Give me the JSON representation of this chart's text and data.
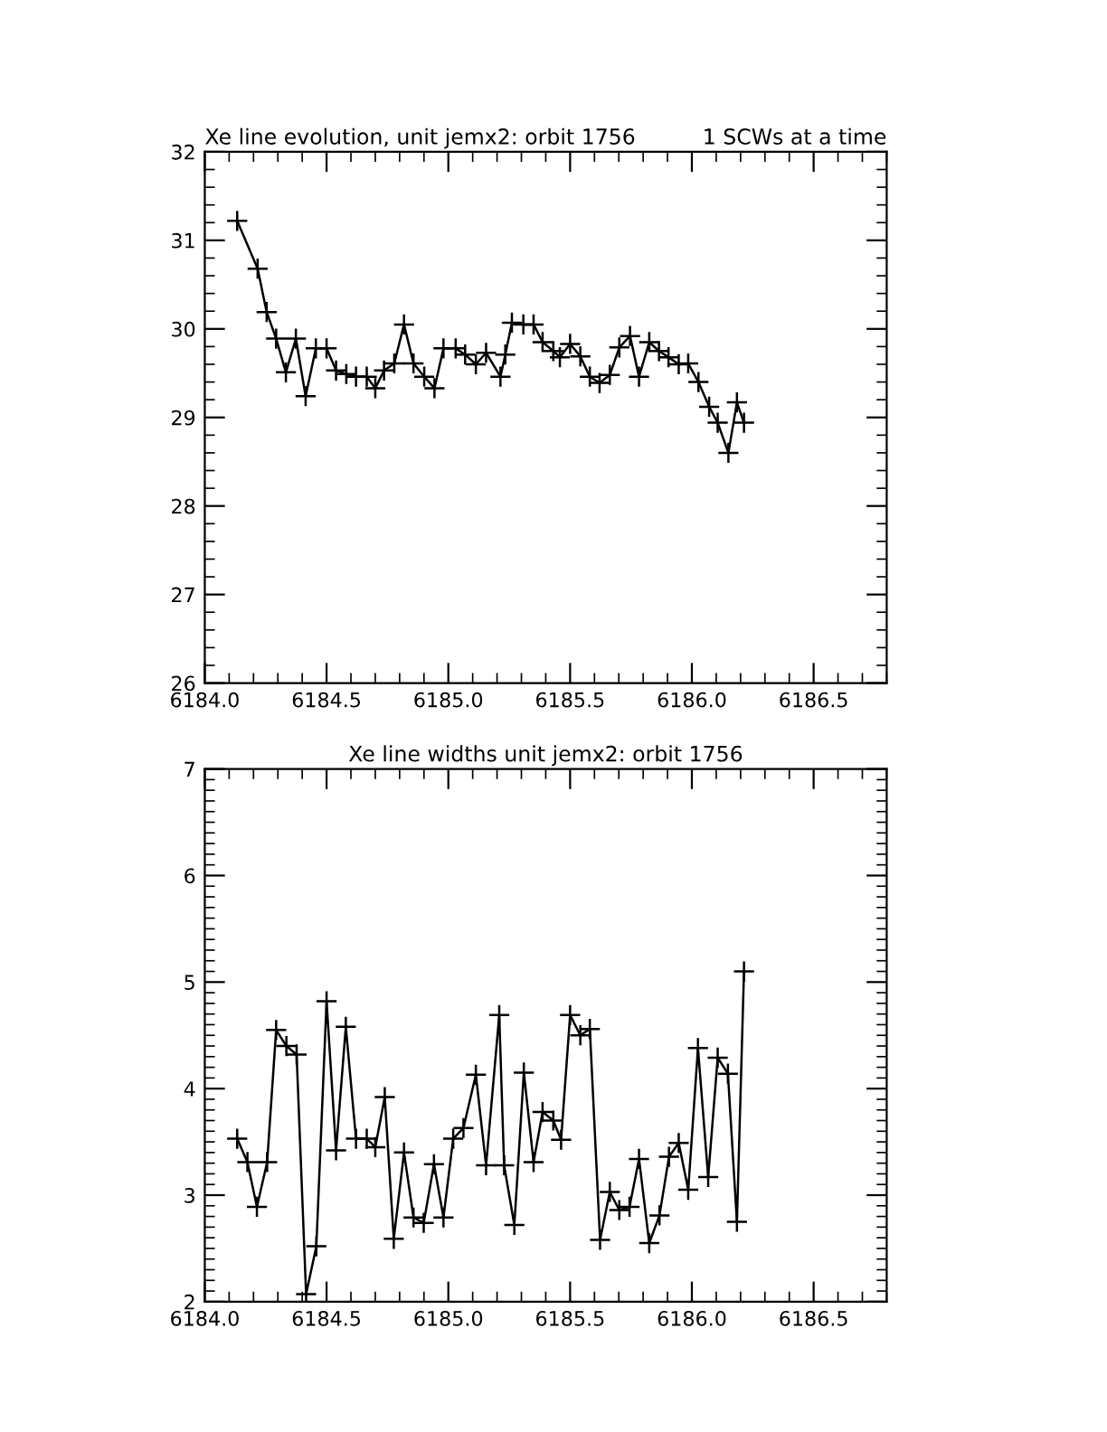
{
  "chart_data": [
    {
      "type": "line",
      "title": "Xe line evolution, unit jemx2: orbit 1756",
      "annotations": [
        "1 SCWs at a time"
      ],
      "marker": "cross",
      "line_style": "solid",
      "grid": false,
      "legend": false,
      "xlim": [
        6184.0,
        6186.8
      ],
      "ylim": [
        26,
        32
      ],
      "xticks": [
        {
          "value": 6184.0,
          "label": "6184.0"
        },
        {
          "value": 6184.5,
          "label": "6184.5"
        },
        {
          "value": 6185.0,
          "label": "6185.0"
        },
        {
          "value": 6185.5,
          "label": "6185.5"
        },
        {
          "value": 6186.0,
          "label": "6186.0"
        },
        {
          "value": 6186.5,
          "label": "6186.5"
        }
      ],
      "yticks": [
        26,
        27,
        28,
        29,
        30,
        31,
        32
      ],
      "series": [
        {
          "color": "#000000",
          "x": [
            6184.133,
            6184.217,
            6184.254,
            6184.293,
            6184.333,
            6184.374,
            6184.414,
            6184.456,
            6184.5,
            6184.539,
            6184.581,
            6184.621,
            6184.665,
            6184.7,
            6184.736,
            6184.778,
            6184.818,
            6184.857,
            6184.901,
            6184.943,
            6184.98,
            6185.03,
            6185.069,
            6185.113,
            6185.155,
            6185.214,
            6185.234,
            6185.261,
            6185.308,
            6185.35,
            6185.387,
            6185.431,
            6185.458,
            6185.5,
            6185.542,
            6185.581,
            6185.621,
            6185.663,
            6185.702,
            6185.746,
            6185.783,
            6185.825,
            6185.865,
            6185.904,
            6185.946,
            6185.985,
            6186.027,
            6186.071,
            6186.106,
            6186.15,
            6186.185,
            6186.214
          ],
          "values": [
            31.22,
            30.68,
            30.19,
            29.89,
            29.51,
            29.89,
            29.24,
            29.78,
            29.78,
            29.53,
            29.49,
            29.46,
            29.46,
            29.33,
            29.53,
            29.61,
            30.05,
            29.61,
            29.46,
            29.33,
            29.78,
            29.78,
            29.71,
            29.6,
            29.73,
            29.46,
            29.71,
            30.07,
            30.05,
            30.05,
            29.85,
            29.75,
            29.68,
            29.83,
            29.69,
            29.46,
            29.39,
            29.48,
            29.79,
            29.92,
            29.46,
            29.85,
            29.75,
            29.68,
            29.6,
            29.61,
            29.4,
            29.12,
            28.94,
            28.6,
            29.17,
            28.94
          ]
        }
      ]
    },
    {
      "type": "line",
      "title": "Xe line widths unit jemx2: orbit 1756",
      "marker": "cross",
      "line_style": "solid",
      "grid": false,
      "legend": false,
      "xlim": [
        6184.0,
        6186.8
      ],
      "ylim": [
        2,
        7
      ],
      "xticks": [
        {
          "value": 6184.0,
          "label": "6184.0"
        },
        {
          "value": 6184.5,
          "label": "6184.5"
        },
        {
          "value": 6185.0,
          "label": "6185.0"
        },
        {
          "value": 6185.5,
          "label": "6185.5"
        },
        {
          "value": 6186.0,
          "label": "6186.0"
        },
        {
          "value": 6186.5,
          "label": "6186.5"
        }
      ],
      "yticks": [
        2,
        3,
        4,
        5,
        6,
        7
      ],
      "series": [
        {
          "color": "#000000",
          "x": [
            6184.133,
            6184.175,
            6184.214,
            6184.256,
            6184.293,
            6184.335,
            6184.377,
            6184.416,
            6184.458,
            6184.5,
            6184.539,
            6184.579,
            6184.621,
            6184.665,
            6184.7,
            6184.739,
            6184.776,
            6184.818,
            6184.857,
            6184.899,
            6184.941,
            6184.98,
            6185.02,
            6185.062,
            6185.113,
            6185.155,
            6185.209,
            6185.229,
            6185.271,
            6185.31,
            6185.35,
            6185.387,
            6185.431,
            6185.463,
            6185.5,
            6185.542,
            6185.581,
            6185.623,
            6185.663,
            6185.702,
            6185.744,
            6185.783,
            6185.825,
            6185.867,
            6185.906,
            6185.946,
            6185.985,
            6186.025,
            6186.067,
            6186.106,
            6186.148,
            6186.185,
            6186.214
          ],
          "values": [
            3.53,
            3.31,
            2.89,
            3.31,
            4.55,
            4.4,
            4.32,
            2.07,
            2.52,
            4.82,
            3.42,
            4.58,
            3.53,
            3.53,
            3.45,
            3.92,
            2.59,
            3.4,
            2.79,
            2.74,
            3.29,
            2.79,
            3.53,
            3.63,
            4.13,
            3.28,
            4.69,
            3.28,
            2.72,
            4.15,
            3.31,
            3.78,
            3.7,
            3.52,
            4.69,
            4.5,
            4.56,
            2.58,
            3.03,
            2.86,
            2.89,
            3.34,
            2.55,
            2.81,
            3.36,
            3.49,
            3.05,
            4.38,
            3.17,
            4.29,
            4.14,
            2.75,
            5.1
          ]
        }
      ]
    }
  ]
}
